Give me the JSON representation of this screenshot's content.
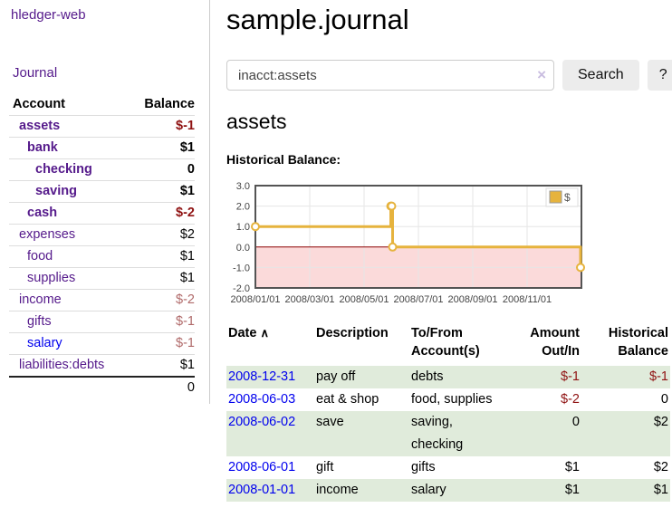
{
  "app": {
    "brand": "hledger-web",
    "nav_journal": "Journal"
  },
  "sidebar": {
    "accounts_header": {
      "account": "Account",
      "balance": "Balance"
    },
    "accounts": [
      {
        "name": "assets",
        "depth": 0,
        "balance": "$-1",
        "bold": true,
        "neg": "strong"
      },
      {
        "name": "bank",
        "depth": 1,
        "balance": "$1",
        "bold": true,
        "neg": "none"
      },
      {
        "name": "checking",
        "depth": 2,
        "balance": "0",
        "bold": true,
        "neg": "none"
      },
      {
        "name": "saving",
        "depth": 2,
        "balance": "$1",
        "bold": true,
        "neg": "none"
      },
      {
        "name": "cash",
        "depth": 1,
        "balance": "$-2",
        "bold": true,
        "neg": "strong"
      },
      {
        "name": "expenses",
        "depth": 0,
        "balance": "$2",
        "bold": false,
        "neg": "none"
      },
      {
        "name": "food",
        "depth": 1,
        "balance": "$1",
        "bold": false,
        "neg": "none"
      },
      {
        "name": "supplies",
        "depth": 1,
        "balance": "$1",
        "bold": false,
        "neg": "none"
      },
      {
        "name": "income",
        "depth": 0,
        "balance": "$-2",
        "bold": false,
        "neg": "soft"
      },
      {
        "name": "gifts",
        "depth": 1,
        "balance": "$-1",
        "bold": false,
        "neg": "soft"
      },
      {
        "name": "salary",
        "depth": 1,
        "balance": "$-1",
        "bold": false,
        "neg": "soft",
        "unvisited": true
      },
      {
        "name": "liabilities:debts",
        "depth": 0,
        "balance": "$1",
        "bold": false,
        "neg": "none"
      }
    ],
    "total_balance": "0"
  },
  "header": {
    "title": "sample.journal"
  },
  "search": {
    "value": "inacct:assets",
    "clear_icon": "×",
    "button": "Search",
    "help_button": "?"
  },
  "account_page": {
    "heading": "assets",
    "chart_label": "Historical Balance:"
  },
  "chart_data": {
    "type": "line",
    "title": "Historical Balance:",
    "x_start": "2008-01-01",
    "x_end": "2009-01-01",
    "ylim": [
      -2,
      3
    ],
    "yticks": [
      "3.0",
      "2.0",
      "1.0",
      "0.0",
      "-1.0",
      "-2.0"
    ],
    "xtick_labels": [
      "2008/01/01",
      "2008/03/01",
      "2008/05/01",
      "2008/07/01",
      "2008/09/01",
      "2008/11/01"
    ],
    "xtick_positions_months": [
      0,
      2,
      4,
      6,
      8,
      10
    ],
    "grid": true,
    "legend_position": "top-right",
    "series": [
      {
        "name": "$",
        "color": "#e6b33d",
        "step": true,
        "points": [
          [
            "2008-01-01",
            1
          ],
          [
            "2008-06-01",
            2
          ],
          [
            "2008-06-02",
            2
          ],
          [
            "2008-06-03",
            0
          ],
          [
            "2008-12-31",
            -1
          ]
        ]
      }
    ],
    "negative_zone": {
      "fill": "#fbdada",
      "zero_line_color": "#8b0000"
    },
    "colors": {
      "border": "#545454",
      "gridline": "#e6e6e6",
      "tick_text": "#444444"
    }
  },
  "register": {
    "columns": {
      "date": "Date",
      "description": "Description",
      "accounts": "To/From Account(s)",
      "amount": "Amount Out/In",
      "balance": "Historical Balance"
    },
    "sort_icon": "∧",
    "rows": [
      {
        "date": "2008-12-31",
        "description": "pay off",
        "accounts": "debts",
        "amount": "$-1",
        "amount_neg": true,
        "balance": "$-1",
        "balance_neg": true,
        "striped": true
      },
      {
        "date": "2008-06-03",
        "description": "eat & shop",
        "accounts": "food, supplies",
        "amount": "$-2",
        "amount_neg": true,
        "balance": "0",
        "balance_neg": false,
        "striped": false
      },
      {
        "date": "2008-06-02",
        "description": "save",
        "accounts": "saving,\nchecking",
        "amount": "0",
        "amount_neg": false,
        "balance": "$2",
        "balance_neg": false,
        "striped": true
      },
      {
        "date": "2008-06-01",
        "description": "gift",
        "accounts": "gifts",
        "amount": "$1",
        "amount_neg": false,
        "balance": "$2",
        "balance_neg": false,
        "striped": false
      },
      {
        "date": "2008-01-01",
        "description": "income",
        "accounts": "salary",
        "amount": "$1",
        "amount_neg": false,
        "balance": "$1",
        "balance_neg": false,
        "striped": true
      }
    ]
  }
}
